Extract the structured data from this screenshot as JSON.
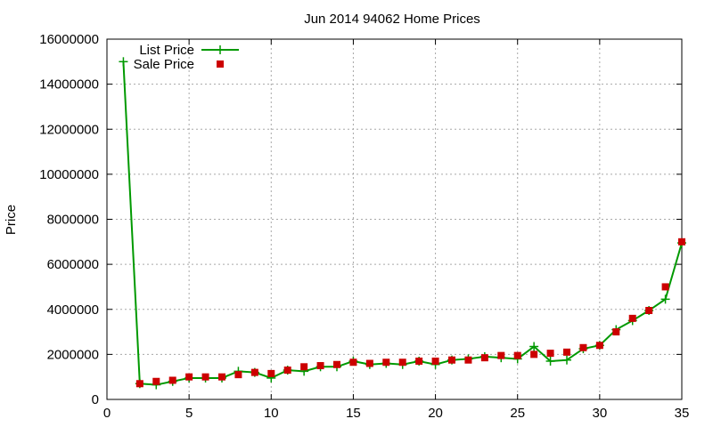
{
  "chart_data": {
    "type": "line",
    "title": "Jun 2014 94062 Home Prices",
    "xlabel": "",
    "ylabel": "Price",
    "xlim": [
      0,
      35
    ],
    "ylim": [
      0,
      16000000
    ],
    "xticks": [
      0,
      5,
      10,
      15,
      20,
      25,
      30,
      35
    ],
    "yticks": [
      0,
      2000000,
      4000000,
      6000000,
      8000000,
      10000000,
      12000000,
      14000000,
      16000000
    ],
    "grid": true,
    "legend_position": "top-left",
    "series": [
      {
        "name": "List Price",
        "style": "line-plus",
        "color": "#009900",
        "x": [
          1,
          2,
          3,
          4,
          5,
          6,
          7,
          8,
          9,
          10,
          11,
          12,
          13,
          14,
          15,
          16,
          17,
          18,
          19,
          20,
          21,
          22,
          23,
          24,
          25,
          26,
          27,
          28,
          29,
          30,
          31,
          32,
          33,
          34,
          35
        ],
        "y": [
          15000000,
          700000,
          650000,
          800000,
          950000,
          950000,
          950000,
          1250000,
          1200000,
          950000,
          1300000,
          1250000,
          1450000,
          1450000,
          1700000,
          1550000,
          1600000,
          1550000,
          1700000,
          1550000,
          1750000,
          1800000,
          1900000,
          1850000,
          1800000,
          2350000,
          1700000,
          1750000,
          2250000,
          2400000,
          3100000,
          3500000,
          3950000,
          4450000,
          6950000
        ]
      },
      {
        "name": "Sale Price",
        "style": "square-markers",
        "color": "#cc0000",
        "x": [
          2,
          3,
          4,
          5,
          6,
          7,
          8,
          9,
          10,
          11,
          12,
          13,
          14,
          15,
          16,
          17,
          18,
          19,
          20,
          21,
          22,
          23,
          24,
          25,
          26,
          27,
          28,
          29,
          30,
          31,
          32,
          33,
          34,
          35
        ],
        "y": [
          700000,
          800000,
          850000,
          1000000,
          1000000,
          1000000,
          1100000,
          1200000,
          1150000,
          1300000,
          1450000,
          1500000,
          1550000,
          1650000,
          1600000,
          1650000,
          1650000,
          1700000,
          1700000,
          1750000,
          1750000,
          1850000,
          1950000,
          1950000,
          2000000,
          2050000,
          2100000,
          2300000,
          2400000,
          3000000,
          3600000,
          3950000,
          5000000,
          7000000
        ]
      }
    ]
  }
}
